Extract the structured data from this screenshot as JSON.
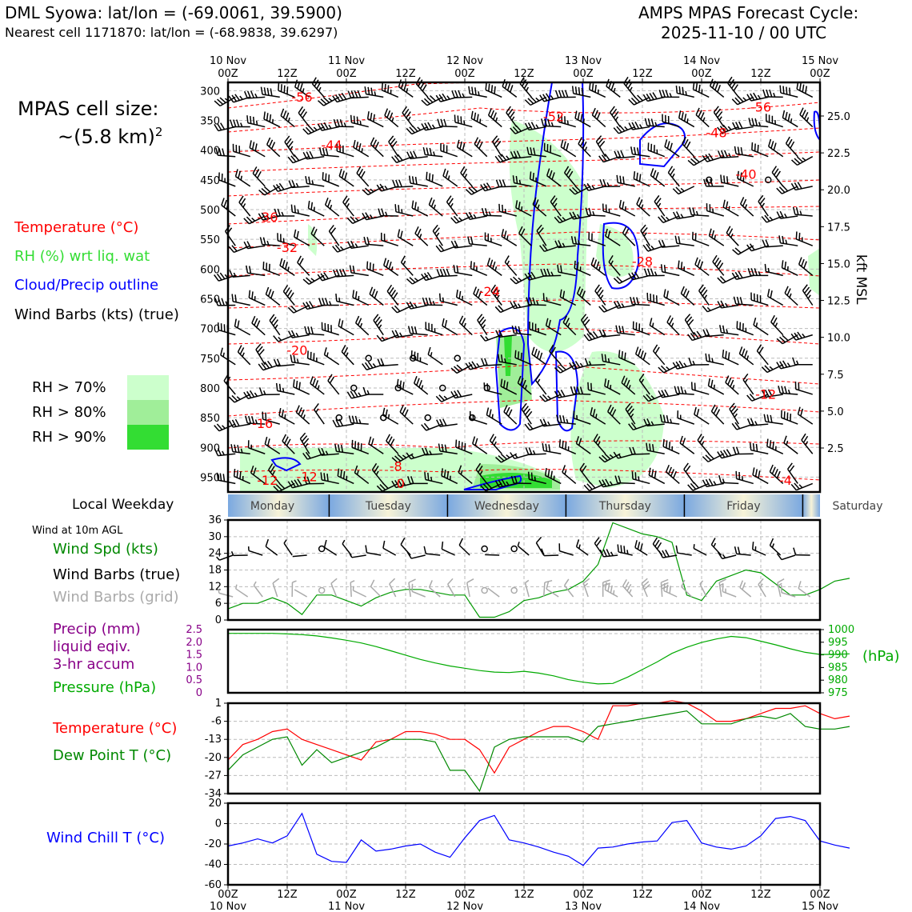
{
  "header": {
    "station": "DML Syowa: lat/lon = (-69.0061, 39.5900)",
    "nearest": "Nearest cell 1171870: lat/lon = (-68.9838, 39.6297)",
    "cycle_line1": "AMPS MPAS Forecast Cycle:",
    "cycle_line2": "2025-11-10 / 00 UTC"
  },
  "cell_size": {
    "line1": "MPAS cell size:",
    "line2": "~(5.8 km)",
    "sup": "2"
  },
  "legend": {
    "temperature": "Temperature (°C)",
    "rh": "RH (%) wrt liq. wat",
    "cloud": "Cloud/Precip outline",
    "wind": "Wind Barbs (kts) (true)",
    "rh70": "RH > 70%",
    "rh80": "RH > 80%",
    "rh90": "RH > 90%",
    "colors": {
      "temp": "#ff0000",
      "rh": "#33dd33",
      "cloud": "#0000ff",
      "rh70": "#ccffcc",
      "rh80": "#a0ee99",
      "rh90": "#33dd33"
    }
  },
  "weekday": {
    "label": "Local Weekday",
    "days": [
      "Monday",
      "Tuesday",
      "Wednesday",
      "Thursday",
      "Friday",
      "Saturday"
    ]
  },
  "panel_labels": {
    "wind10m": "Wind at 10m AGL",
    "wind_spd": "Wind Spd (kts)",
    "barbs_true": "Wind Barbs (true)",
    "barbs_grid": "Wind Barbs (grid)",
    "precip1": "Precip (mm)",
    "precip2": "liquid eqiv.",
    "precip3": "3-hr accum",
    "pressure": "Pressure (hPa)",
    "pressure_unit": "(hPa)",
    "temp": "Temperature (°C)",
    "dew": "Dew Point T (°C)",
    "chill": "Wind Chill T (°C)",
    "kft": "kft MSL"
  },
  "time_axis": {
    "top_ticks": [
      [
        "10 Nov",
        "00Z"
      ],
      [
        "",
        "12Z"
      ],
      [
        "11 Nov",
        "00Z"
      ],
      [
        "",
        "12Z"
      ],
      [
        "12 Nov",
        "00Z"
      ],
      [
        "",
        "12Z"
      ],
      [
        "13 Nov",
        "00Z"
      ],
      [
        "",
        "12Z"
      ],
      [
        "14 Nov",
        "00Z"
      ],
      [
        "",
        "12Z"
      ],
      [
        "15 Nov",
        "00Z"
      ]
    ],
    "bottom_ticks": [
      [
        "00Z",
        "10 Nov"
      ],
      [
        "12Z",
        ""
      ],
      [
        "00Z",
        "11 Nov"
      ],
      [
        "12Z",
        ""
      ],
      [
        "00Z",
        "12 Nov"
      ],
      [
        "12Z",
        ""
      ],
      [
        "00Z",
        "13 Nov"
      ],
      [
        "12Z",
        ""
      ],
      [
        "00Z",
        "14 Nov"
      ],
      [
        "12Z",
        ""
      ],
      [
        "00Z",
        "15 Nov"
      ]
    ]
  },
  "chart_data": [
    {
      "type": "heatmap",
      "title": "Time-height cross section",
      "y_pressure_ticks": [
        "300",
        "350",
        "400",
        "450",
        "500",
        "550",
        "600",
        "650",
        "700",
        "750",
        "800",
        "850",
        "900",
        "950"
      ],
      "y_kft_ticks": [
        "25.0",
        "22.5",
        "20.0",
        "17.5",
        "15.0",
        "12.5",
        "10.0",
        "7.5",
        "5.0",
        "2.5"
      ],
      "temp_contour_labels": [
        {
          "text": "-56",
          "t": 15,
          "p": 310
        },
        {
          "text": "-56",
          "t": 108,
          "p": 327
        },
        {
          "text": "-52",
          "t": 66,
          "p": 343
        },
        {
          "text": "-48",
          "t": 99,
          "p": 370
        },
        {
          "text": "-44",
          "t": 21,
          "p": 391
        },
        {
          "text": "-40",
          "t": 105,
          "p": 440
        },
        {
          "text": "-36",
          "t": 8,
          "p": 512
        },
        {
          "text": "-32",
          "t": 12,
          "p": 563
        },
        {
          "text": "-28",
          "t": 84,
          "p": 587
        },
        {
          "text": "-24",
          "t": 53,
          "p": 637
        },
        {
          "text": "-20",
          "t": 14,
          "p": 736
        },
        {
          "text": "-16",
          "t": 7,
          "p": 859
        },
        {
          "text": "-12",
          "t": 8,
          "p": 955
        },
        {
          "text": "-12",
          "t": 16,
          "p": 949
        },
        {
          "text": "-12",
          "t": 109,
          "p": 810
        },
        {
          "text": "-8",
          "t": 34,
          "p": 931
        },
        {
          "text": "-4",
          "t": 113,
          "p": 955
        },
        {
          "text": "0",
          "t": 35,
          "p": 960
        }
      ]
    },
    {
      "type": "line",
      "title": "Wind at 10m AGL",
      "series": [
        {
          "name": "Wind Spd (kts)",
          "values": [
            4,
            6,
            6,
            8,
            6,
            2,
            9,
            9,
            7,
            5,
            8,
            10,
            11,
            11,
            10,
            9,
            9,
            1,
            1,
            3,
            7,
            8,
            10,
            11,
            14,
            20,
            35,
            33,
            31,
            30,
            28,
            9,
            7,
            14,
            16,
            18,
            17,
            13,
            9,
            9,
            11,
            14,
            15
          ]
        }
      ],
      "yticks": [
        "0",
        "6",
        "12",
        "18",
        "24",
        "30",
        "36"
      ],
      "ylim": [
        0,
        36
      ]
    },
    {
      "type": "line",
      "title": "Pressure",
      "series": [
        {
          "name": "Pressure (hPa)",
          "values": [
            998.5,
            998.5,
            998.5,
            998.5,
            998.3,
            998.0,
            997.5,
            996.7,
            995.8,
            994.7,
            993.3,
            991.6,
            989.9,
            988.2,
            986.8,
            985.6,
            984.7,
            983.8,
            983.2,
            983.0,
            983.5,
            982.8,
            981.7,
            980.2,
            979.2,
            978.5,
            978.7,
            981.2,
            984.2,
            987.2,
            990.6,
            993.0,
            994.9,
            996.3,
            997.3,
            996.8,
            995.4,
            994.0,
            992.4,
            991.0,
            990.2,
            990.2,
            990.4
          ]
        }
      ],
      "left_ticks": [
        "0",
        "0.5",
        "1.0",
        "1.5",
        "2.0",
        "2.5"
      ],
      "right_ticks": [
        "975",
        "980",
        "985",
        "990",
        "995",
        "1000"
      ],
      "ylim": [
        975,
        1000
      ]
    },
    {
      "type": "line",
      "title": "Temperature / Dew Point",
      "series": [
        {
          "name": "Temperature (°C)",
          "values": [
            -21,
            -15,
            -13,
            -10,
            -9,
            -13,
            -15,
            -17,
            -19,
            -21,
            -14,
            -13,
            -10,
            -10,
            -11,
            -13,
            -13,
            -17,
            -26,
            -16,
            -13,
            -10,
            -8,
            -8,
            -10,
            -13,
            0,
            0,
            1,
            1,
            2,
            1,
            -2,
            -6,
            -6,
            -5,
            -3,
            -1,
            -1,
            0,
            -3,
            -5,
            -4
          ]
        },
        {
          "name": "Dew Point T (°C)",
          "values": [
            -25,
            -19,
            -16,
            -13,
            -12,
            -23,
            -17,
            -22,
            -20,
            -18,
            -16,
            -13,
            -13,
            -13,
            -14,
            -25,
            -25,
            -33,
            -16,
            -13,
            -12,
            -12,
            -12,
            -12,
            -14,
            -8,
            -7,
            -6,
            -5,
            -4,
            -3,
            -2,
            -7,
            -7,
            -7,
            -5,
            -4,
            -5,
            -3,
            -8,
            -9,
            -9,
            -8
          ]
        }
      ],
      "yticks": [
        "-34",
        "-27",
        "-20",
        "-13",
        "-6",
        "1"
      ],
      "ylim": [
        -34,
        1
      ]
    },
    {
      "type": "line",
      "title": "Wind Chill",
      "series": [
        {
          "name": "Wind Chill T (°C)",
          "values": [
            -22,
            -19,
            -15,
            -19,
            -12,
            10,
            -30,
            -37,
            -38,
            -16,
            -27,
            -25,
            -22,
            -20,
            -28,
            -33,
            -14,
            3,
            8,
            -16,
            -19,
            -23,
            -28,
            -32,
            -41,
            -24,
            -23,
            -20,
            -18,
            -17,
            1,
            3,
            -19,
            -23,
            -25,
            -22,
            -12,
            5,
            7,
            3,
            -17,
            -21,
            -24
          ]
        }
      ],
      "yticks": [
        "-60",
        "-40",
        "-20",
        "0",
        "20"
      ],
      "ylim": [
        -60,
        20
      ]
    }
  ]
}
